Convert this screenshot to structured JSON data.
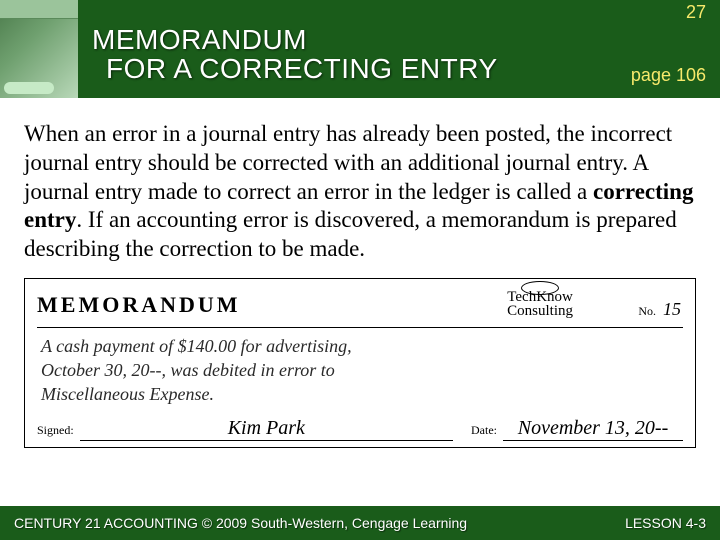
{
  "colors": {
    "header_bg": "#1a5c1a",
    "accent_text": "#f7e96b",
    "body_bg": "#ffffff",
    "text": "#000000"
  },
  "header": {
    "title_line1": "MEMORANDUM",
    "title_line2": "FOR A CORRECTING ENTRY",
    "slide_number": "27",
    "page_reference": "page 106"
  },
  "body": {
    "paragraph_pre": "When an error in a journal entry has already been posted, the incorrect journal entry should be corrected with an additional journal entry. A journal entry made to correct an error in the ledger is called a ",
    "bold_term": "correcting entry",
    "paragraph_post": ". If an accounting error is discovered, a memorandum is prepared describing the correction to be made."
  },
  "memo": {
    "heading": "MEMORANDUM",
    "company_line1": "TechKnow",
    "company_line2": "Consulting",
    "number_label": "No.",
    "number_value": "15",
    "body_line1": "A cash payment of $140.00 for advertising,",
    "body_line2": "October 30, 20--, was debited in error to",
    "body_line3": "Miscellaneous Expense.",
    "signed_label": "Signed:",
    "signed_value": "Kim Park",
    "date_label": "Date:",
    "date_value": "November 13, 20--"
  },
  "footer": {
    "left": "CENTURY 21 ACCOUNTING © 2009 South-Western, Cengage Learning",
    "right": "LESSON  4-3"
  }
}
